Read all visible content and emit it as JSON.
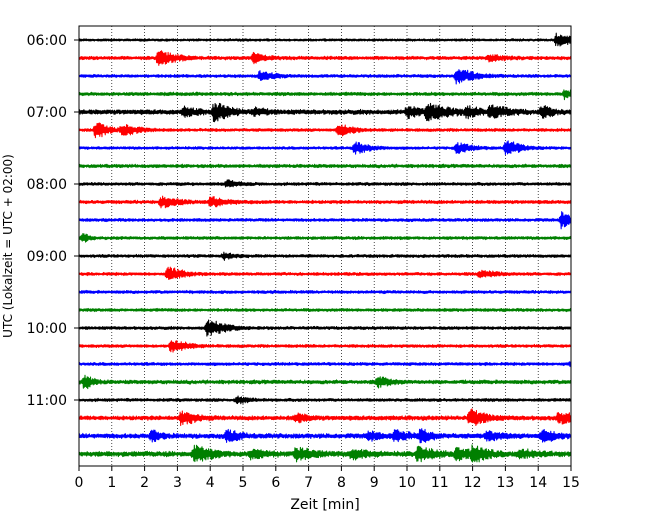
{
  "chart_data": {
    "type": "line",
    "title": "",
    "xlabel": "Zeit  [min]",
    "ylabel": "UTC (Lokalzeit = UTC + 02:00)",
    "xlim": [
      0,
      15
    ],
    "x_ticks": [
      0,
      1,
      2,
      3,
      4,
      5,
      6,
      7,
      8,
      9,
      10,
      11,
      12,
      13,
      14,
      15
    ],
    "y_tick_labels": [
      "06:00",
      "07:00",
      "08:00",
      "09:00",
      "10:00",
      "11:00"
    ],
    "row_minutes": 15,
    "grid": "vertical-dotted",
    "colors": [
      "#000000",
      "#ff0000",
      "#0000ff",
      "#008000"
    ],
    "series": [
      {
        "start": "06:00",
        "color": "#000000",
        "noise": 0.18,
        "events": [
          {
            "t": 14.55,
            "amp": 0.8,
            "dur": 0.5
          }
        ]
      },
      {
        "start": "06:15",
        "color": "#ff0000",
        "noise": 0.25,
        "events": [
          {
            "t": 2.4,
            "amp": 0.8,
            "dur": 0.6
          },
          {
            "t": 5.3,
            "amp": 0.6,
            "dur": 0.4
          },
          {
            "t": 12.5,
            "amp": 0.35,
            "dur": 0.5
          }
        ]
      },
      {
        "start": "06:30",
        "color": "#0000ff",
        "noise": 0.22,
        "events": [
          {
            "t": 5.5,
            "amp": 0.6,
            "dur": 0.5
          },
          {
            "t": 11.5,
            "amp": 0.9,
            "dur": 0.6
          }
        ]
      },
      {
        "start": "06:45",
        "color": "#008000",
        "noise": 0.25,
        "events": [
          {
            "t": 14.8,
            "amp": 0.55,
            "dur": 0.3
          }
        ]
      },
      {
        "start": "07:00",
        "color": "#000000",
        "noise": 0.35,
        "events": [
          {
            "t": 3.2,
            "amp": 0.5,
            "dur": 0.4
          },
          {
            "t": 4.1,
            "amp": 1.2,
            "dur": 0.5
          },
          {
            "t": 5.3,
            "amp": 0.4,
            "dur": 0.4
          },
          {
            "t": 10.0,
            "amp": 0.7,
            "dur": 0.4
          },
          {
            "t": 10.6,
            "amp": 1.0,
            "dur": 0.7
          },
          {
            "t": 11.8,
            "amp": 0.6,
            "dur": 0.4
          },
          {
            "t": 12.5,
            "amp": 0.7,
            "dur": 0.6
          },
          {
            "t": 14.1,
            "amp": 0.8,
            "dur": 0.3
          }
        ]
      },
      {
        "start": "07:15",
        "color": "#ff0000",
        "noise": 0.22,
        "events": [
          {
            "t": 0.5,
            "amp": 1.0,
            "dur": 0.4
          },
          {
            "t": 1.3,
            "amp": 0.7,
            "dur": 0.5
          },
          {
            "t": 7.9,
            "amp": 0.7,
            "dur": 0.5
          }
        ]
      },
      {
        "start": "07:30",
        "color": "#0000ff",
        "noise": 0.2,
        "events": [
          {
            "t": 8.4,
            "amp": 0.7,
            "dur": 0.5
          },
          {
            "t": 11.5,
            "amp": 0.6,
            "dur": 0.5
          },
          {
            "t": 13.0,
            "amp": 0.9,
            "dur": 0.5
          }
        ]
      },
      {
        "start": "07:45",
        "color": "#008000",
        "noise": 0.25,
        "events": []
      },
      {
        "start": "08:00",
        "color": "#000000",
        "noise": 0.22,
        "events": [
          {
            "t": 4.5,
            "amp": 0.4,
            "dur": 0.4
          }
        ]
      },
      {
        "start": "08:15",
        "color": "#ff0000",
        "noise": 0.25,
        "events": [
          {
            "t": 2.5,
            "amp": 0.7,
            "dur": 0.5
          },
          {
            "t": 4.0,
            "amp": 0.6,
            "dur": 0.5
          }
        ]
      },
      {
        "start": "08:30",
        "color": "#0000ff",
        "noise": 0.22,
        "events": [
          {
            "t": 14.7,
            "amp": 1.0,
            "dur": 0.3
          }
        ]
      },
      {
        "start": "08:45",
        "color": "#008000",
        "noise": 0.22,
        "events": [
          {
            "t": 0.1,
            "amp": 0.6,
            "dur": 0.2
          }
        ]
      },
      {
        "start": "09:00",
        "color": "#000000",
        "noise": 0.22,
        "events": [
          {
            "t": 4.4,
            "amp": 0.4,
            "dur": 0.3
          }
        ]
      },
      {
        "start": "09:15",
        "color": "#ff0000",
        "noise": 0.22,
        "events": [
          {
            "t": 2.7,
            "amp": 0.8,
            "dur": 0.5
          },
          {
            "t": 12.2,
            "amp": 0.35,
            "dur": 0.6
          }
        ]
      },
      {
        "start": "09:30",
        "color": "#0000ff",
        "noise": 0.22,
        "events": []
      },
      {
        "start": "09:45",
        "color": "#008000",
        "noise": 0.22,
        "events": []
      },
      {
        "start": "10:00",
        "color": "#000000",
        "noise": 0.22,
        "events": [
          {
            "t": 3.9,
            "amp": 1.0,
            "dur": 0.6
          }
        ]
      },
      {
        "start": "10:15",
        "color": "#ff0000",
        "noise": 0.22,
        "events": [
          {
            "t": 2.8,
            "amp": 0.8,
            "dur": 0.5
          }
        ]
      },
      {
        "start": "10:30",
        "color": "#0000ff",
        "noise": 0.22,
        "events": [
          {
            "t": 15.0,
            "amp": 0.5,
            "dur": 0.2
          }
        ]
      },
      {
        "start": "10:45",
        "color": "#008000",
        "noise": 0.28,
        "events": [
          {
            "t": 0.15,
            "amp": 0.8,
            "dur": 0.3
          },
          {
            "t": 9.1,
            "amp": 0.6,
            "dur": 0.4
          }
        ]
      },
      {
        "start": "11:00",
        "color": "#000000",
        "noise": 0.22,
        "events": [
          {
            "t": 4.8,
            "amp": 0.4,
            "dur": 0.4
          }
        ]
      },
      {
        "start": "11:15",
        "color": "#ff0000",
        "noise": 0.32,
        "events": [
          {
            "t": 3.1,
            "amp": 0.8,
            "dur": 0.5
          },
          {
            "t": 6.6,
            "amp": 0.5,
            "dur": 0.4
          },
          {
            "t": 11.9,
            "amp": 1.0,
            "dur": 0.5
          },
          {
            "t": 14.6,
            "amp": 0.6,
            "dur": 0.6
          }
        ]
      },
      {
        "start": "11:30",
        "color": "#0000ff",
        "noise": 0.35,
        "events": [
          {
            "t": 2.2,
            "amp": 0.7,
            "dur": 0.3
          },
          {
            "t": 4.5,
            "amp": 0.7,
            "dur": 0.4
          },
          {
            "t": 8.8,
            "amp": 0.5,
            "dur": 0.4
          },
          {
            "t": 9.6,
            "amp": 0.6,
            "dur": 0.5
          },
          {
            "t": 10.4,
            "amp": 0.7,
            "dur": 0.4
          },
          {
            "t": 12.4,
            "amp": 0.5,
            "dur": 0.5
          },
          {
            "t": 14.1,
            "amp": 0.7,
            "dur": 0.5
          }
        ]
      },
      {
        "start": "11:45",
        "color": "#008000",
        "noise": 0.38,
        "events": [
          {
            "t": 3.5,
            "amp": 0.9,
            "dur": 0.6
          },
          {
            "t": 5.2,
            "amp": 0.5,
            "dur": 0.5
          },
          {
            "t": 6.6,
            "amp": 0.7,
            "dur": 0.6
          },
          {
            "t": 8.3,
            "amp": 0.6,
            "dur": 0.5
          },
          {
            "t": 10.3,
            "amp": 0.8,
            "dur": 0.6
          },
          {
            "t": 11.5,
            "amp": 0.7,
            "dur": 0.5
          },
          {
            "t": 12.0,
            "amp": 0.9,
            "dur": 0.5
          },
          {
            "t": 13.4,
            "amp": 0.5,
            "dur": 0.5
          }
        ]
      }
    ]
  }
}
